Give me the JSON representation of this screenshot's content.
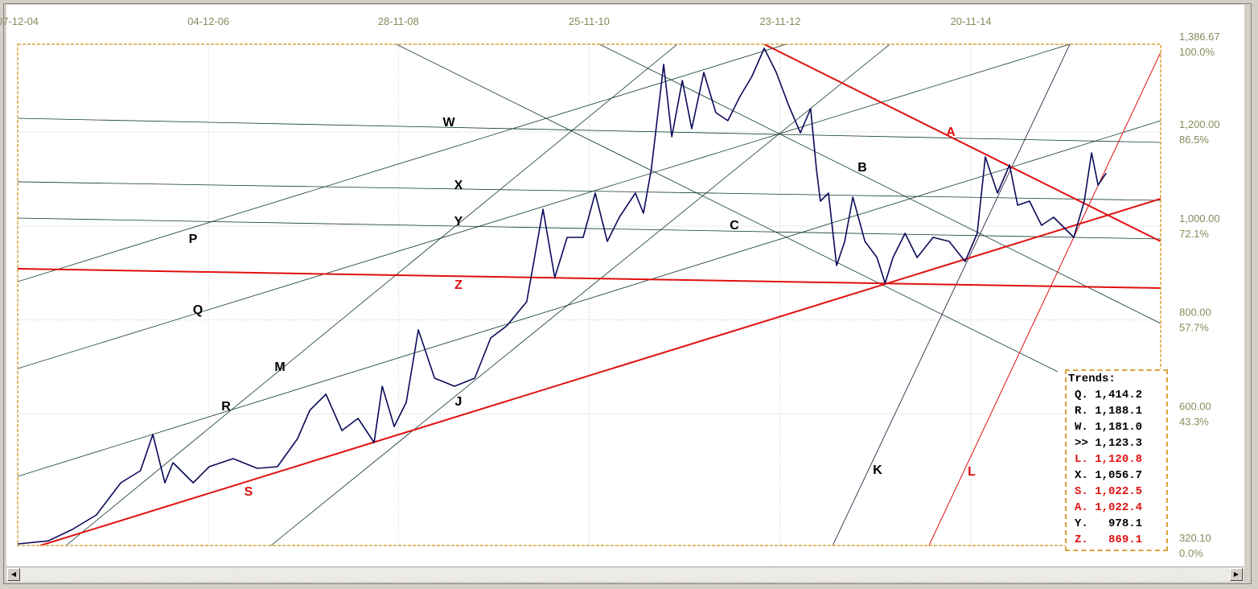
{
  "chart_data": {
    "type": "line",
    "x_ticks": [
      "07-12-04",
      "04-12-06",
      "28-11-08",
      "25-11-10",
      "23-11-12",
      "20-11-14"
    ],
    "x_tick_dates": [
      "2004-12-07",
      "2006-12-04",
      "2008-11-28",
      "2010-11-25",
      "2012-11-23",
      "2014-11-20"
    ],
    "xlim": [
      "2004-12-07",
      "2016-11-13"
    ],
    "ylim": [
      320.1,
      1386.67
    ],
    "y_ticks": [
      {
        "value": 1386.67,
        "label": "1,386.67",
        "pct": "100.0%"
      },
      {
        "value": 1200.0,
        "label": "1,200.00",
        "pct": "86.5%"
      },
      {
        "value": 1000.0,
        "label": "1,000.00",
        "pct": "72.1%"
      },
      {
        "value": 800.0,
        "label": "800.00",
        "pct": "57.7%"
      },
      {
        "value": 600.0,
        "label": "600.00",
        "pct": "43.3%"
      },
      {
        "value": 320.1,
        "label": "320.10",
        "pct": "0.0%"
      }
    ],
    "grid": true,
    "colors": {
      "price": "#0a0a5a",
      "trend": "#103830",
      "red": "#e01010",
      "axis_text": "#8a8a5c",
      "border": "#d9a33c"
    },
    "price_series": [
      [
        "2004-12-07",
        323.5
      ],
      [
        "2005-04-03",
        330.0
      ],
      [
        "2005-07-03",
        354.4
      ],
      [
        "2005-10-03",
        385.2
      ],
      [
        "2006-01-04",
        453.7
      ],
      [
        "2006-03-20",
        479.4
      ],
      [
        "2006-05-06",
        556.4
      ],
      [
        "2006-06-21",
        453.7
      ],
      [
        "2006-07-22",
        496.4
      ],
      [
        "2006-10-07",
        453.7
      ],
      [
        "2006-12-07",
        487.9
      ],
      [
        "2007-03-08",
        505.0
      ],
      [
        "2007-06-08",
        484.4
      ],
      [
        "2007-08-24",
        487.9
      ],
      [
        "2007-11-09",
        547.8
      ],
      [
        "2007-12-25",
        607.7
      ],
      [
        "2008-02-25",
        642.0
      ],
      [
        "2008-04-26",
        565.0
      ],
      [
        "2008-06-27",
        590.6
      ],
      [
        "2008-08-27",
        539.2
      ],
      [
        "2008-09-27",
        659.1
      ],
      [
        "2008-11-12",
        573.5
      ],
      [
        "2008-12-28",
        625.0
      ],
      [
        "2009-02-12",
        779.0
      ],
      [
        "2009-04-15",
        676.2
      ],
      [
        "2009-06-30",
        659.1
      ],
      [
        "2009-09-15",
        676.2
      ],
      [
        "2009-11-15",
        761.8
      ],
      [
        "2010-01-15",
        787.5
      ],
      [
        "2010-04-01",
        838.8
      ],
      [
        "2010-05-01",
        933.0
      ],
      [
        "2010-06-02",
        1035.7
      ],
      [
        "2010-07-17",
        890.2
      ],
      [
        "2010-09-02",
        975.8
      ],
      [
        "2010-11-02",
        975.8
      ],
      [
        "2010-12-18",
        1070.0
      ],
      [
        "2011-02-02",
        967.2
      ],
      [
        "2011-03-20",
        1018.6
      ],
      [
        "2011-05-20",
        1070.0
      ],
      [
        "2011-06-20",
        1027.2
      ],
      [
        "2011-07-20",
        1121.5
      ],
      [
        "2011-09-05",
        1343.9
      ],
      [
        "2011-10-06",
        1189.8
      ],
      [
        "2011-11-15",
        1309.6
      ],
      [
        "2011-12-21",
        1206.9
      ],
      [
        "2012-02-05",
        1326.7
      ],
      [
        "2012-03-22",
        1241.1
      ],
      [
        "2012-05-07",
        1224.0
      ],
      [
        "2012-06-22",
        1275.4
      ],
      [
        "2012-08-07",
        1318.2
      ],
      [
        "2012-09-23",
        1378.1
      ],
      [
        "2012-11-08",
        1326.7
      ],
      [
        "2012-12-24",
        1258.3
      ],
      [
        "2013-02-08",
        1198.4
      ],
      [
        "2013-03-19",
        1249.7
      ],
      [
        "2013-04-10",
        1121.5
      ],
      [
        "2013-04-25",
        1052.8
      ],
      [
        "2013-05-26",
        1070.0
      ],
      [
        "2013-06-26",
        915.9
      ],
      [
        "2013-07-27",
        967.2
      ],
      [
        "2013-08-27",
        1061.4
      ],
      [
        "2013-10-12",
        967.2
      ],
      [
        "2013-11-27",
        933.0
      ],
      [
        "2013-12-28",
        878.2
      ],
      [
        "2014-01-27",
        933.0
      ],
      [
        "2014-03-14",
        984.3
      ],
      [
        "2014-04-29",
        933.0
      ],
      [
        "2014-06-29",
        975.8
      ],
      [
        "2014-08-29",
        967.2
      ],
      [
        "2014-10-29",
        924.4
      ],
      [
        "2014-12-14",
        984.3
      ],
      [
        "2015-01-14",
        1147.0
      ],
      [
        "2015-03-01",
        1070.0
      ],
      [
        "2015-04-16",
        1129.9
      ],
      [
        "2015-05-17",
        1044.3
      ],
      [
        "2015-07-01",
        1052.8
      ],
      [
        "2015-08-16",
        1001.5
      ],
      [
        "2015-10-01",
        1018.6
      ],
      [
        "2015-11-01",
        1001.5
      ],
      [
        "2015-12-17",
        975.8
      ],
      [
        "2016-01-26",
        1052.8
      ],
      [
        "2016-02-23",
        1155.5
      ],
      [
        "2016-03-19",
        1087.1
      ],
      [
        "2016-04-19",
        1112.8
      ]
    ],
    "trendlines": [
      {
        "name": "W",
        "color": "trend",
        "from": [
          "2004-12-07",
          1229.2
        ],
        "to": [
          "2016-11-13",
          1177.8
        ]
      },
      {
        "name": "X",
        "color": "trend",
        "from": [
          "2004-12-07",
          1094.0
        ],
        "to": [
          "2016-11-13",
          1054.5
        ]
      },
      {
        "name": "Y",
        "color": "trend",
        "from": [
          "2004-12-07",
          1016.9
        ],
        "to": [
          "2016-11-13",
          972.4
        ]
      },
      {
        "name": "P",
        "color": "trend",
        "from": [
          "2004-12-07",
          881.6
        ],
        "to": [
          "2012-12-15",
          1386.7
        ]
      },
      {
        "name": "Q",
        "color": "trend",
        "from": [
          "2004-12-07",
          696.7
        ],
        "to": [
          "2015-12-02",
          1386.7
        ]
      },
      {
        "name": "R",
        "color": "trend",
        "from": [
          "2004-12-07",
          467.3
        ],
        "to": [
          "2016-11-13",
          1224.0
        ]
      },
      {
        "name": "M",
        "color": "trend",
        "from": [
          "2005-06-09",
          320.1
        ],
        "to": [
          "2011-10-27",
          1386.7
        ]
      },
      {
        "name": "J",
        "color": "trend",
        "from": [
          "2007-07-30",
          320.1
        ],
        "to": [
          "2014-01-15",
          1386.7
        ]
      },
      {
        "name": "B",
        "color": "trend",
        "from": [
          "2011-01-03",
          1386.7
        ],
        "to": [
          "2016-11-13",
          792.6
        ]
      },
      {
        "name": "C",
        "color": "trend",
        "from": [
          "2008-11-20",
          1386.7
        ],
        "to": [
          "2015-10-17",
          689.9
        ]
      },
      {
        "name": "K",
        "color": "dark",
        "from": [
          "2013-06-11",
          320.1
        ],
        "to": [
          "2015-12-02",
          1386.7
        ]
      },
      {
        "name": "S",
        "color": "red",
        "width": 2,
        "from": [
          "2005-03-03",
          320.1
        ],
        "to": [
          "2016-11-13",
          1058.0
        ]
      },
      {
        "name": "Z",
        "color": "red",
        "width": 2,
        "from": [
          "2004-12-07",
          909.0
        ],
        "to": [
          "2016-11-13",
          867.9
        ]
      },
      {
        "name": "A",
        "color": "red",
        "width": 2,
        "from": [
          "2012-09-23",
          1386.7
        ],
        "to": [
          "2016-11-13",
          967.2
        ]
      },
      {
        "name": "L",
        "color": "red",
        "width": 1,
        "from": [
          "2014-06-13",
          320.1
        ],
        "to": [
          "2016-11-13",
          1369.6
        ]
      }
    ],
    "line_labels": [
      {
        "text": "W",
        "color": "black"
      },
      {
        "text": "X",
        "color": "black"
      },
      {
        "text": "Y",
        "color": "black"
      },
      {
        "text": "P",
        "color": "black"
      },
      {
        "text": "Z",
        "color": "red"
      },
      {
        "text": "Q",
        "color": "black"
      },
      {
        "text": "M",
        "color": "black"
      },
      {
        "text": "R",
        "color": "black"
      },
      {
        "text": "J",
        "color": "black"
      },
      {
        "text": "S",
        "color": "red"
      },
      {
        "text": "A",
        "color": "red"
      },
      {
        "text": "B",
        "color": "black"
      },
      {
        "text": "C",
        "color": "black"
      },
      {
        "text": "K",
        "color": "black"
      },
      {
        "text": "L",
        "color": "red"
      }
    ]
  },
  "trends_box": {
    "title": "Trends:",
    "rows": [
      {
        "key": "Q.",
        "value": "1,414.2",
        "color": "black"
      },
      {
        "key": "R.",
        "value": "1,188.1",
        "color": "black"
      },
      {
        "key": "W.",
        "value": "1,181.0",
        "color": "black"
      },
      {
        "key": ">>",
        "value": "1,123.3",
        "color": "black"
      },
      {
        "key": "L.",
        "value": "1,120.8",
        "color": "red"
      },
      {
        "key": "X.",
        "value": "1,056.7",
        "color": "black"
      },
      {
        "key": "S.",
        "value": "1,022.5",
        "color": "red"
      },
      {
        "key": "A.",
        "value": "1,022.4",
        "color": "red"
      },
      {
        "key": "Y.",
        "value": "978.1",
        "color": "black"
      },
      {
        "key": "Z.",
        "value": "869.1",
        "color": "red"
      }
    ]
  },
  "scrollbar": {
    "left_icon": "arrow-left-icon",
    "right_icon": "arrow-right-icon"
  }
}
